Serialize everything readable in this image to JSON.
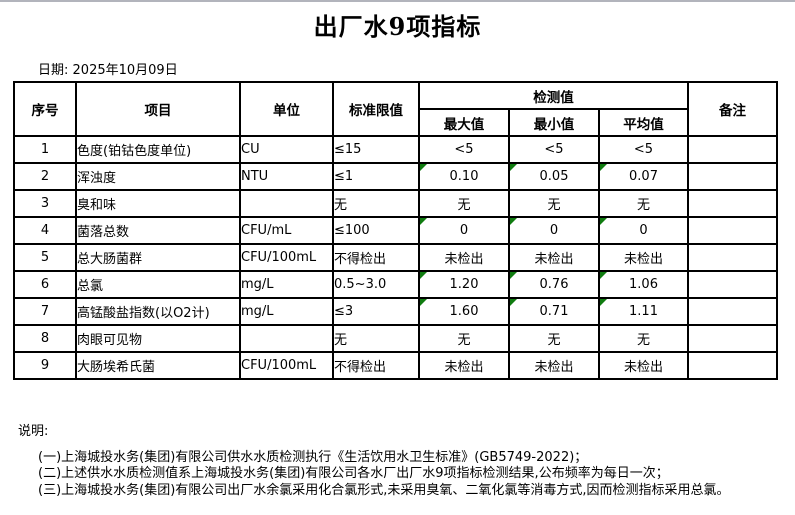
{
  "page": {
    "title": "出厂水9项指标",
    "date_label": "日期:",
    "date_value": "2025年10月09日"
  },
  "table": {
    "headers": {
      "no": "序号",
      "item": "项目",
      "unit": "单位",
      "limit": "标准限值",
      "detection": "检测值",
      "max": "最大值",
      "min": "最小值",
      "avg": "平均值",
      "remark": "备注"
    },
    "rows": [
      {
        "no": "1",
        "item": "色度(铂钴色度单位)",
        "unit": "CU",
        "limit": "≤15",
        "max": "<5",
        "min": "<5",
        "avg": "<5",
        "remark": "",
        "flag": false
      },
      {
        "no": "2",
        "item": "浑浊度",
        "unit": "NTU",
        "limit": "≤1",
        "max": "0.10",
        "min": "0.05",
        "avg": "0.07",
        "remark": "",
        "flag": true
      },
      {
        "no": "3",
        "item": "臭和味",
        "unit": "",
        "limit": "无",
        "max": "无",
        "min": "无",
        "avg": "无",
        "remark": "",
        "flag": false
      },
      {
        "no": "4",
        "item": "菌落总数",
        "unit": "CFU/mL",
        "limit": "≤100",
        "max": "0",
        "min": "0",
        "avg": "0",
        "remark": "",
        "flag": true
      },
      {
        "no": "5",
        "item": "总大肠菌群",
        "unit": "CFU/100mL",
        "limit": "不得检出",
        "max": "未检出",
        "min": "未检出",
        "avg": "未检出",
        "remark": "",
        "flag": false
      },
      {
        "no": "6",
        "item": "总氯",
        "unit": "mg/L",
        "limit": "0.5~3.0",
        "max": "1.20",
        "min": "0.76",
        "avg": "1.06",
        "remark": "",
        "flag": true
      },
      {
        "no": "7",
        "item": "高锰酸盐指数(以O2计)",
        "unit": "mg/L",
        "limit": "≤3",
        "max": "1.60",
        "min": "0.71",
        "avg": "1.11",
        "remark": "",
        "flag": true
      },
      {
        "no": "8",
        "item": "肉眼可见物",
        "unit": "",
        "limit": "无",
        "max": "无",
        "min": "无",
        "avg": "无",
        "remark": "",
        "flag": false
      },
      {
        "no": "9",
        "item": "大肠埃希氏菌",
        "unit": "CFU/100mL",
        "limit": "不得检出",
        "max": "未检出",
        "min": "未检出",
        "avg": "未检出",
        "remark": "",
        "flag": false
      }
    ]
  },
  "notes": {
    "heading": "说明:",
    "lines": [
      "(一)上海城投水务(集团)有限公司供水水质检测执行《生活饮用水卫生标准》(GB5749-2022)；",
      "(二)上述供水水质检测值系上海城投水务(集团)有限公司各水厂出厂水9项指标检测结果,公布频率为每日一次；",
      "(三)上海城投水务(集团)有限公司出厂水余氯采用化合氯形式,未采用臭氧、二氧化氯等消毒方式,因而检测指标采用总氯。"
    ]
  },
  "colors": {
    "border": "#000000",
    "background": "#ffffff",
    "flag_triangle": "#107c10",
    "top_line": "#b2b4bc"
  }
}
